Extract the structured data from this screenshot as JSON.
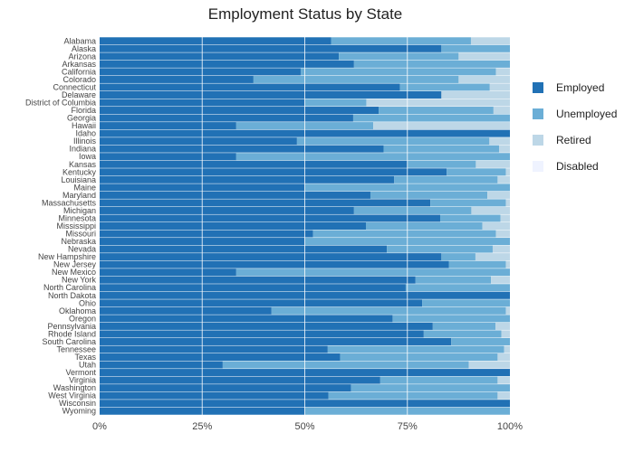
{
  "chart_data": {
    "type": "bar",
    "orientation": "horizontal",
    "stacked": "percent",
    "title": "Employment Status by State",
    "xlabel": "",
    "ylabel": "",
    "xlim": [
      0,
      100
    ],
    "x_ticks": [
      "0%",
      "25%",
      "50%",
      "75%",
      "100%"
    ],
    "categories": [
      "Alabama",
      "Alaska",
      "Arizona",
      "Arkansas",
      "California",
      "Colorado",
      "Connecticut",
      "Delaware",
      "District of Columbia",
      "Florida",
      "Georgia",
      "Hawaii",
      "Idaho",
      "Illinois",
      "Indiana",
      "Iowa",
      "Kansas",
      "Kentucky",
      "Louisiana",
      "Maine",
      "Maryland",
      "Massachusetts",
      "Michigan",
      "Minnesota",
      "Mississippi",
      "Missouri",
      "Nebraska",
      "Nevada",
      "New Hampshire",
      "New Jersey",
      "New Mexico",
      "New York",
      "North Carolina",
      "North Dakota",
      "Ohio",
      "Oklahoma",
      "Oregon",
      "Pennsylvania",
      "Rhode Island",
      "South Carolina",
      "Tennessee",
      "Texas",
      "Utah",
      "Vermont",
      "Virginia",
      "Washington",
      "West Virginia",
      "Wisconsin",
      "Wyoming"
    ],
    "series": [
      {
        "name": "Employed",
        "color": "#2171b5",
        "values": [
          56.4,
          83.3,
          58.3,
          62.0,
          49.0,
          37.5,
          73.2,
          83.3,
          50.0,
          68.0,
          61.8,
          33.3,
          100,
          48.1,
          69.2,
          33.3,
          75.0,
          84.6,
          71.8,
          50.0,
          66.0,
          80.6,
          62.0,
          83.0,
          64.9,
          52.0,
          50.0,
          70.0,
          83.3,
          85.1,
          33.3,
          77.0,
          74.6,
          100,
          78.6,
          41.9,
          71.4,
          81.2,
          79.0,
          85.7,
          55.6,
          58.6,
          30.0,
          100,
          68.4,
          61.3,
          55.8,
          100,
          50.0
        ]
      },
      {
        "name": "Unemployed",
        "color": "#6baed6",
        "values": [
          34.1,
          16.7,
          29.2,
          38.0,
          47.6,
          50.0,
          21.9,
          0,
          15.0,
          28.0,
          38.2,
          33.4,
          0,
          46.9,
          28.2,
          66.7,
          16.7,
          14.4,
          25.2,
          50.0,
          28.5,
          18.4,
          28.6,
          14.7,
          28.4,
          44.6,
          50.0,
          25.8,
          8.3,
          13.9,
          66.7,
          18.4,
          25.4,
          0,
          21.4,
          57.1,
          28.6,
          15.3,
          18.9,
          14.3,
          43.0,
          38.4,
          60.0,
          0,
          28.6,
          38.7,
          41.2,
          0,
          50.0
        ]
      },
      {
        "name": "Retired",
        "color": "#bdd7e7",
        "values": [
          9.5,
          0,
          12.5,
          0,
          3.4,
          12.5,
          4.9,
          16.7,
          35.0,
          4.0,
          0,
          33.3,
          0,
          5.0,
          2.6,
          0,
          8.3,
          1.0,
          3.0,
          0,
          5.5,
          1.0,
          9.4,
          2.3,
          6.7,
          3.4,
          0,
          4.2,
          8.4,
          1.0,
          0,
          4.6,
          0,
          0,
          0,
          1.0,
          0,
          3.5,
          2.1,
          0,
          1.4,
          3.0,
          10.0,
          0,
          3.0,
          0,
          3.0,
          0,
          0
        ]
      },
      {
        "name": "Disabled",
        "color": "#eff3ff",
        "values": [
          0,
          0,
          0,
          0,
          0,
          0,
          0,
          0,
          0,
          0,
          0,
          0,
          0,
          0,
          0,
          0,
          0,
          0,
          0,
          0,
          0,
          0,
          0,
          0,
          0,
          0,
          0,
          0,
          0,
          0,
          0,
          0,
          0,
          0,
          0,
          0,
          0,
          0,
          0,
          0,
          0,
          0,
          0,
          0,
          0,
          0,
          0,
          0,
          0
        ]
      }
    ],
    "legend_position": "right",
    "grid": true
  }
}
